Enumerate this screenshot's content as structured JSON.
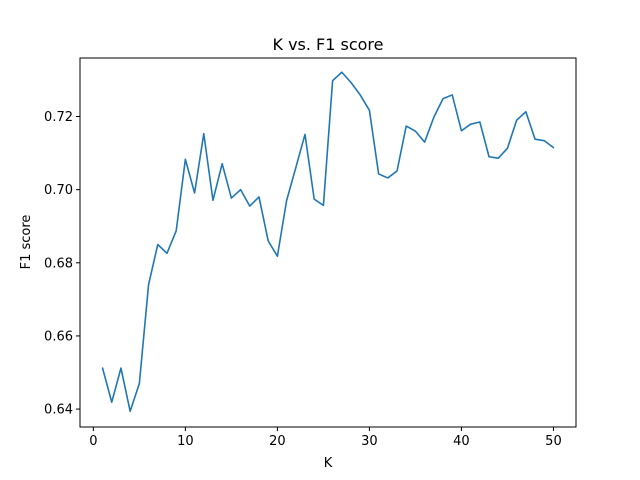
{
  "chart_data": {
    "type": "line",
    "title": "K vs. F1 score",
    "xlabel": "K",
    "ylabel": "F1 score",
    "xlim": [
      -1.45,
      52.45
    ],
    "ylim": [
      0.6351,
      0.736
    ],
    "xticks": [
      0,
      10,
      20,
      30,
      40,
      50
    ],
    "yticks": [
      0.64,
      0.66,
      0.68,
      0.7,
      0.72
    ],
    "ytick_labels": [
      "0.64",
      "0.66",
      "0.68",
      "0.70",
      "0.72"
    ],
    "grid": false,
    "line_color": "#1f77b4",
    "series": [
      {
        "x": [
          1,
          2,
          3,
          4,
          5,
          6,
          7,
          8,
          9,
          10,
          11,
          12,
          13,
          14,
          15,
          16,
          17,
          18,
          19,
          20,
          21,
          22,
          23,
          24,
          25,
          26,
          27,
          28,
          29,
          30,
          31,
          32,
          33,
          34,
          35,
          36,
          37,
          38,
          39,
          40,
          41,
          42,
          43,
          44,
          45,
          46,
          47,
          48,
          49,
          50
        ],
        "values": [
          0.6512,
          0.6419,
          0.6512,
          0.6394,
          0.647,
          0.674,
          0.685,
          0.6826,
          0.6887,
          0.7083,
          0.6991,
          0.7153,
          0.6971,
          0.7071,
          0.6977,
          0.7,
          0.6955,
          0.698,
          0.686,
          0.6818,
          0.697,
          0.706,
          0.7151,
          0.6974,
          0.6957,
          0.7298,
          0.7321,
          0.7293,
          0.7259,
          0.7217,
          0.7043,
          0.7032,
          0.7051,
          0.7174,
          0.716,
          0.713,
          0.7198,
          0.7249,
          0.7259,
          0.7161,
          0.7179,
          0.7185,
          0.709,
          0.7086,
          0.7113,
          0.719,
          0.7213,
          0.7138,
          0.7134,
          0.7115
        ]
      }
    ]
  }
}
